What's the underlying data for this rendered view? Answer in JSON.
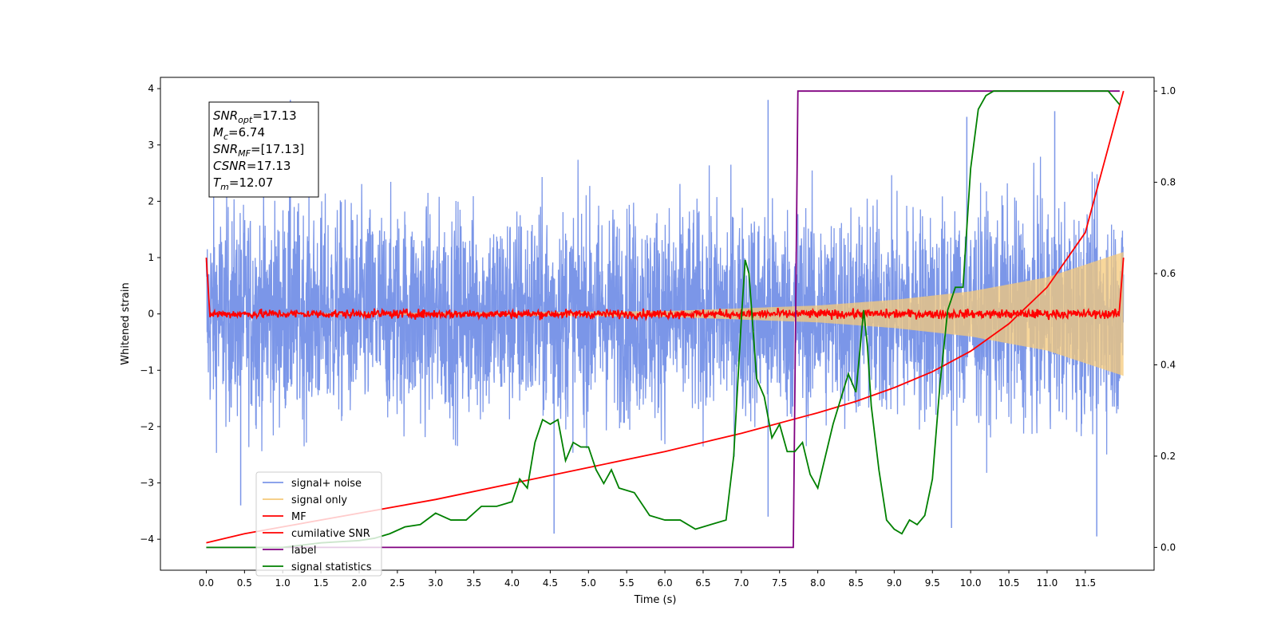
{
  "chart_data": {
    "type": "line",
    "xlabel": "Time (s)",
    "ylabel_left": "Whitened strain",
    "ylabel_right": "",
    "xlim": [
      -0.6,
      12.4
    ],
    "ylim_left": [
      -4.55,
      4.2
    ],
    "ylim_right": [
      -0.05,
      1.03
    ],
    "x_ticks": [
      0.0,
      0.5,
      1.0,
      1.5,
      2.0,
      2.5,
      3.0,
      3.5,
      4.0,
      4.5,
      5.0,
      5.5,
      6.0,
      6.5,
      7.0,
      7.5,
      8.0,
      8.5,
      9.0,
      9.5,
      10.0,
      10.5,
      11.0,
      11.5
    ],
    "x_tick_labels": [
      "0.0",
      "0.5",
      "1.0",
      "1.5",
      "2.0",
      "2.5",
      "3.0",
      "3.5",
      "4.0",
      "4.5",
      "5.0",
      "5.5",
      "6.0",
      "6.5",
      "7.0",
      "7.5",
      "8.0",
      "8.5",
      "9.0",
      "9.5",
      "10.0",
      "10.5",
      "11.0",
      "11.5"
    ],
    "y_ticks_left": [
      4,
      3,
      2,
      1,
      0,
      -1,
      -2,
      -3,
      -4
    ],
    "y_tick_labels_left": [
      "4",
      "3",
      "2",
      "1",
      "0",
      "−1",
      "−2",
      "−3",
      "−4"
    ],
    "y_ticks_right": [
      1.0,
      0.8,
      0.6,
      0.4,
      0.2,
      0.0
    ],
    "y_tick_labels_right": [
      "1.0",
      "0.8",
      "0.6",
      "0.4",
      "0.2",
      "0.0"
    ],
    "grid": false,
    "legend_position": "lower-left",
    "info_box": [
      {
        "sym": "SNR",
        "sub": "opt",
        "value": "=17.13"
      },
      {
        "sym": "M",
        "sub": "c",
        "value": "=6.74"
      },
      {
        "sym": "SNR",
        "sub": "MF",
        "value": "=[17.13]"
      },
      {
        "sym": "CSNR",
        "sub": "",
        "value": "=17.13"
      },
      {
        "sym": "T",
        "sub": "m",
        "value": "=12.07"
      }
    ],
    "signal_noise": {
      "name": "signal+ noise",
      "color": "#7b96e8",
      "axis": "left",
      "x_range": [
        0.0,
        12.0
      ],
      "typical_upper": 2.0,
      "typical_lower": -1.8,
      "notable_peaks": [
        [
          1.1,
          3.8
        ],
        [
          7.35,
          3.8
        ],
        [
          9.95,
          3.5
        ],
        [
          11.1,
          3.6
        ]
      ],
      "notable_dips": [
        [
          0.45,
          -3.4
        ],
        [
          4.55,
          -3.9
        ],
        [
          7.35,
          -3.6
        ],
        [
          9.75,
          -3.8
        ],
        [
          11.65,
          -3.95
        ]
      ]
    },
    "signal_only": {
      "name": "signal only",
      "color": "#f5c97a",
      "axis": "left",
      "x_range": [
        0.0,
        12.0
      ],
      "envelope": [
        [
          0.0,
          0.0
        ],
        [
          4.0,
          0.03
        ],
        [
          6.0,
          0.05
        ],
        [
          7.0,
          0.1
        ],
        [
          8.0,
          0.15
        ],
        [
          9.0,
          0.25
        ],
        [
          10.0,
          0.4
        ],
        [
          11.0,
          0.65
        ],
        [
          12.0,
          1.1
        ]
      ]
    },
    "mf": {
      "name": "MF",
      "color": "#ff0000",
      "axis": "left",
      "start_value": 1.0,
      "end_value": 1.0,
      "noise_level": 0.08
    },
    "cumulative_snr": {
      "name": "cumilative SNR",
      "color": "#ff0000",
      "axis": "right",
      "x": [
        0.0,
        0.5,
        1.0,
        2.0,
        3.0,
        4.0,
        5.0,
        6.0,
        7.0,
        8.0,
        8.5,
        9.0,
        9.5,
        10.0,
        10.5,
        11.0,
        11.5,
        12.0
      ],
      "y": [
        0.01,
        0.03,
        0.045,
        0.075,
        0.105,
        0.14,
        0.175,
        0.21,
        0.25,
        0.295,
        0.32,
        0.35,
        0.385,
        0.43,
        0.49,
        0.57,
        0.69,
        1.0
      ]
    },
    "label_series": {
      "name": "label",
      "color": "#800080",
      "axis": "right",
      "x": [
        0.0,
        7.68,
        7.74,
        11.95
      ],
      "y": [
        0.0,
        0.0,
        1.0,
        1.0
      ]
    },
    "signal_statistics": {
      "name": "signal statistics",
      "color": "#008000",
      "axis": "right",
      "x": [
        0.0,
        0.5,
        1.0,
        1.5,
        2.0,
        2.2,
        2.4,
        2.6,
        2.8,
        3.0,
        3.2,
        3.4,
        3.6,
        3.8,
        4.0,
        4.1,
        4.2,
        4.3,
        4.4,
        4.5,
        4.6,
        4.7,
        4.8,
        4.9,
        5.0,
        5.1,
        5.2,
        5.3,
        5.4,
        5.6,
        5.8,
        6.0,
        6.2,
        6.4,
        6.6,
        6.8,
        6.9,
        7.0,
        7.05,
        7.1,
        7.2,
        7.3,
        7.4,
        7.5,
        7.6,
        7.7,
        7.8,
        7.9,
        8.0,
        8.2,
        8.4,
        8.5,
        8.6,
        8.65,
        8.7,
        8.8,
        8.9,
        9.0,
        9.1,
        9.2,
        9.3,
        9.4,
        9.5,
        9.6,
        9.7,
        9.8,
        9.9,
        10.0,
        10.1,
        10.2,
        10.3,
        10.4,
        10.6,
        11.0,
        11.5,
        11.8,
        11.95
      ],
      "y": [
        0.0,
        0.0,
        0.0,
        0.01,
        0.015,
        0.02,
        0.03,
        0.045,
        0.05,
        0.075,
        0.06,
        0.06,
        0.09,
        0.09,
        0.1,
        0.15,
        0.13,
        0.23,
        0.28,
        0.27,
        0.28,
        0.19,
        0.23,
        0.22,
        0.22,
        0.17,
        0.14,
        0.17,
        0.13,
        0.12,
        0.07,
        0.06,
        0.06,
        0.04,
        0.05,
        0.06,
        0.2,
        0.5,
        0.63,
        0.6,
        0.37,
        0.33,
        0.24,
        0.27,
        0.21,
        0.21,
        0.23,
        0.16,
        0.13,
        0.27,
        0.38,
        0.34,
        0.52,
        0.44,
        0.31,
        0.17,
        0.06,
        0.04,
        0.03,
        0.06,
        0.05,
        0.07,
        0.15,
        0.36,
        0.52,
        0.57,
        0.57,
        0.83,
        0.96,
        0.99,
        1.0,
        1.0,
        1.0,
        1.0,
        1.0,
        1.0,
        0.97
      ]
    },
    "legend": [
      {
        "label": "signal+ noise",
        "color": "#7b96e8"
      },
      {
        "label": "signal only",
        "color": "#f5c97a"
      },
      {
        "label": "MF",
        "color": "#ff0000"
      },
      {
        "label": "cumilative SNR",
        "color": "#ff0000"
      },
      {
        "label": "label",
        "color": "#800080"
      },
      {
        "label": "signal statistics",
        "color": "#008000"
      }
    ]
  }
}
